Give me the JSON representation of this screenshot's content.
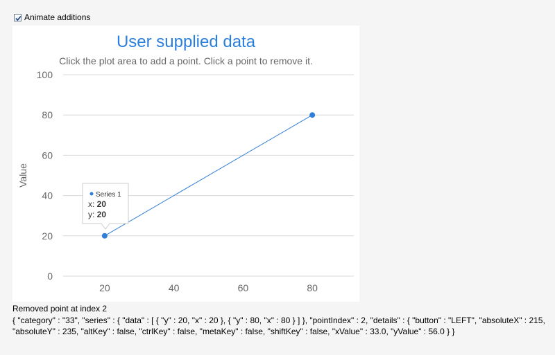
{
  "controls": {
    "animate_label": "Animate additions",
    "animate_checked": true
  },
  "chart_data": {
    "type": "line",
    "title": "User supplied data",
    "subtitle": "Click the plot area to add a point. Click a point to remove it.",
    "xlabel": "",
    "ylabel": "Value",
    "xlim": [
      8,
      92
    ],
    "ylim": [
      0,
      100
    ],
    "x_ticks": [
      20,
      40,
      60,
      80
    ],
    "y_ticks": [
      0,
      20,
      40,
      60,
      80,
      100
    ],
    "grid": true,
    "series": [
      {
        "name": "Series 1",
        "color": "#2f7ed8",
        "points": [
          {
            "x": 20,
            "y": 20
          },
          {
            "x": 80,
            "y": 80
          }
        ]
      }
    ],
    "tooltip": {
      "series_name": "Series 1",
      "x_label": "x: ",
      "x_value": "20",
      "y_label": "y: ",
      "y_value": "20"
    }
  },
  "colors": {
    "title": "#2a7fdc",
    "series": "#2f7ed8"
  },
  "status": {
    "message": "Removed point at index 2",
    "details": "{ \"category\" : \"33\", \"series\" : { \"data\" : [ { \"y\" : 20, \"x\" : 20 }, { \"y\" : 80, \"x\" : 80 } ] }, \"pointIndex\" : 2, \"details\" : { \"button\" : \"LEFT\", \"absoluteX\" : 215, \"absoluteY\" : 235, \"altKey\" : false, \"ctrlKey\" : false, \"metaKey\" : false, \"shiftKey\" : false, \"xValue\" : 33.0, \"yValue\" : 56.0 } }"
  }
}
